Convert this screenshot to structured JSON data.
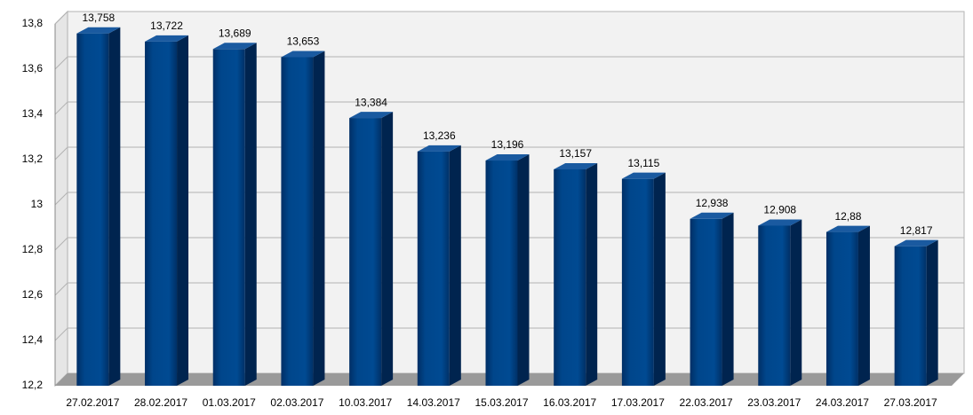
{
  "chart_data": {
    "type": "bar3d",
    "categories": [
      "27.02.2017",
      "28.02.2017",
      "01.03.2017",
      "02.03.2017",
      "10.03.2017",
      "14.03.2017",
      "15.03.2017",
      "16.03.2017",
      "17.03.2017",
      "22.03.2017",
      "23.03.2017",
      "24.03.2017",
      "27.03.2017"
    ],
    "values": [
      13.758,
      13.722,
      13.689,
      13.653,
      13.384,
      13.236,
      13.196,
      13.157,
      13.115,
      12.938,
      12.908,
      12.88,
      12.817
    ],
    "value_labels": [
      "13,758",
      "13,722",
      "13,689",
      "13,653",
      "13,384",
      "13,236",
      "13,196",
      "13,157",
      "13,115",
      "12,938",
      "12,908",
      "12,88",
      "12,817"
    ],
    "color": "#00468b",
    "ylim": [
      12.2,
      13.8
    ],
    "yticks": [
      {
        "value": 12.2,
        "label": "12,2"
      },
      {
        "value": 12.4,
        "label": "12,4"
      },
      {
        "value": 12.6,
        "label": "12,6"
      },
      {
        "value": 12.8,
        "label": "12,8"
      },
      13,
      {
        "value": 13.2,
        "label": "13,2"
      },
      {
        "value": 13.4,
        "label": "13,4"
      },
      {
        "value": 13.6,
        "label": "13,6"
      },
      {
        "value": 13.8,
        "label": "13,8"
      }
    ],
    "grid": true
  }
}
